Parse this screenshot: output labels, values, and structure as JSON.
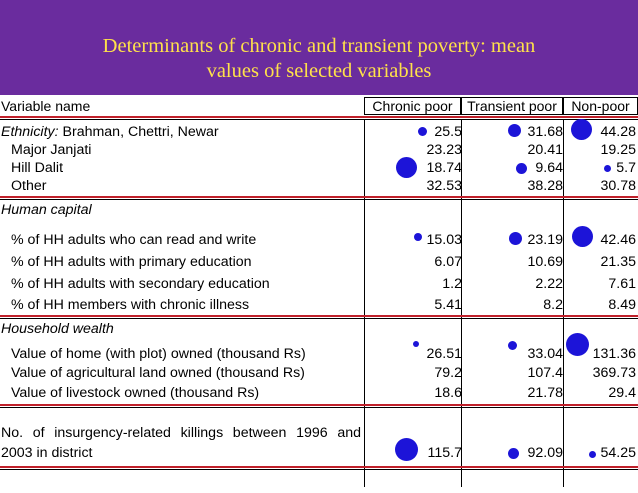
{
  "title_line1": "Determinants of chronic and transient poverty: mean",
  "title_line2": "values of selected variables",
  "colors": {
    "header_bg": "#6a2c9e",
    "title": "#ffe14a",
    "bubble": "#1c14d8",
    "section_rule": "#c0202a"
  },
  "columns": {
    "variable": "Variable name",
    "chronic": "Chronic poor",
    "transient": "Transient poor",
    "nonpoor": "Non-poor"
  },
  "ethnicity": {
    "prefix": "Ethnicity:",
    "rows": [
      {
        "label": " Brahman, Chettri, Newar",
        "chronic": "25.5",
        "transient": "31.68",
        "nonpoor": "44.28"
      },
      {
        "label": "Major Janjati",
        "chronic": "23.23",
        "transient": "20.41",
        "nonpoor": "19.25"
      },
      {
        "label": "Hill Dalit",
        "chronic": "18.74",
        "transient": "9.64",
        "nonpoor": "5.7"
      },
      {
        "label": "Other",
        "chronic": "32.53",
        "transient": "38.28",
        "nonpoor": "30.78"
      }
    ]
  },
  "human_capital": {
    "heading": "Human capital",
    "rows": [
      {
        "label": "% of HH adults who can read and write",
        "chronic": "15.03",
        "transient": "23.19",
        "nonpoor": "42.46"
      },
      {
        "label": "% of HH adults with primary education",
        "chronic": "6.07",
        "transient": "10.69",
        "nonpoor": "21.35"
      },
      {
        "label": "% of HH adults with secondary education",
        "chronic": "1.2",
        "transient": "2.22",
        "nonpoor": "7.61"
      },
      {
        "label": "% of HH members with chronic illness",
        "chronic": "5.41",
        "transient": "8.2",
        "nonpoor": "8.49"
      }
    ]
  },
  "household_wealth": {
    "heading": "Household wealth",
    "rows": [
      {
        "label": "Value of home (with plot) owned (thousand Rs)",
        "chronic": "26.51",
        "transient": "33.04",
        "nonpoor": "131.36"
      },
      {
        "label": "Value of agricultural land owned (thousand Rs)",
        "chronic": "79.2",
        "transient": "107.4",
        "nonpoor": "369.73"
      },
      {
        "label": "Value of livestock owned (thousand Rs)",
        "chronic": "18.6",
        "transient": "21.78",
        "nonpoor": "29.4"
      }
    ]
  },
  "insurgency": {
    "label_line1": "No. of insurgency-related killings between 1996 and",
    "label_line2": "2003 in district",
    "chronic": "115.7",
    "transient": "92.09",
    "nonpoor": "54.25"
  }
}
